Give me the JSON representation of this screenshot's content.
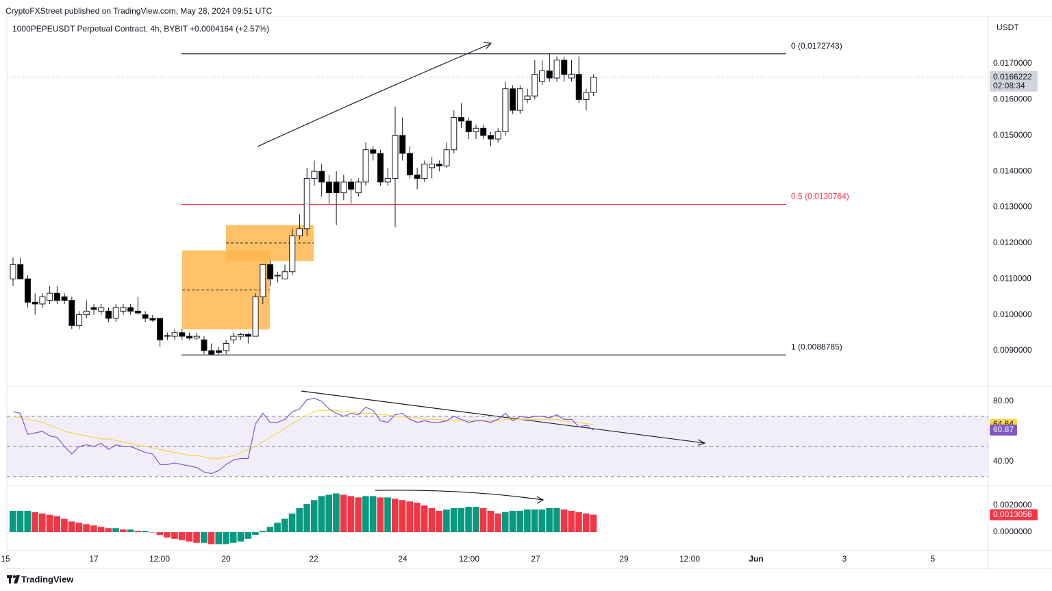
{
  "header": {
    "publisher": "CryptoFXStreet published on TradingView.com, May 28, 2024 09:51 UTC",
    "symbol": "1000PEPEUSDT Perpetual Contract, 4h, BYBIT",
    "change": "+0.0004164 (+2.57%)",
    "currency": "USDT",
    "countdown": "02:08:34",
    "logo": "TradingView"
  },
  "chart_data": [
    {
      "type": "candlestick",
      "up_color": "#ffffff",
      "down_color": "#000000",
      "open": [
        0.011,
        0.0114,
        0.011,
        0.01035,
        0.0103,
        0.0104,
        0.0106,
        0.0105,
        0.0104,
        0.0097,
        0.01,
        0.0102,
        0.0101,
        0.0101,
        0.0099,
        0.0101,
        0.0102,
        0.0101,
        0.01,
        0.0099,
        0.0099,
        0.0094,
        0.0094,
        0.0095,
        0.0094,
        0.00935,
        0.0093,
        0.009,
        0.009,
        0.009,
        0.0093,
        0.0094,
        0.00945,
        0.0094,
        0.0105,
        0.0114,
        0.0111,
        0.011,
        0.0112,
        0.0122,
        0.0124,
        0.0138,
        0.014,
        0.0137,
        0.0137,
        0.0134,
        0.0137,
        0.0134,
        0.0137,
        0.0146,
        0.0145,
        0.0137,
        0.0138,
        0.015,
        0.0145,
        0.0139,
        0.0138,
        0.0141,
        0.0142,
        0.01415,
        0.0146,
        0.0155,
        0.0154,
        0.0151,
        0.0152,
        0.015,
        0.0149,
        0.0151,
        0.0163,
        0.0157,
        0.016,
        0.0161,
        0.0165,
        0.0168,
        0.0166,
        0.0171,
        0.0166,
        0.0167,
        0.016,
        0.0162
      ],
      "high": [
        0.0116,
        0.0116,
        0.0111,
        0.0106,
        0.0106,
        0.0108,
        0.0108,
        0.0106,
        0.0105,
        0.0101,
        0.0104,
        0.0103,
        0.0103,
        0.0102,
        0.0103,
        0.0103,
        0.0103,
        0.0105,
        0.0101,
        0.01,
        0.0099,
        0.0095,
        0.0096,
        0.0096,
        0.0095,
        0.0095,
        0.0094,
        0.0092,
        0.0091,
        0.0093,
        0.0095,
        0.0095,
        0.0095,
        0.0106,
        0.0114,
        0.0115,
        0.0112,
        0.0114,
        0.0124,
        0.0128,
        0.0141,
        0.0143,
        0.0142,
        0.0139,
        0.014,
        0.0139,
        0.0138,
        0.0138,
        0.0148,
        0.0147,
        0.0146,
        0.0141,
        0.0158,
        0.0155,
        0.0147,
        0.0141,
        0.0143,
        0.0144,
        0.0143,
        0.0148,
        0.0157,
        0.0159,
        0.0155,
        0.0153,
        0.0153,
        0.0151,
        0.0152,
        0.0165,
        0.0164,
        0.0164,
        0.0163,
        0.0171,
        0.0171,
        0.01727,
        0.0172,
        0.0172,
        0.0171,
        0.0172,
        0.0163,
        0.0167
      ],
      "low": [
        0.0108,
        0.011,
        0.0102,
        0.01,
        0.0102,
        0.0103,
        0.0103,
        0.0103,
        0.0096,
        0.0096,
        0.0099,
        0.01,
        0.01,
        0.0098,
        0.0098,
        0.01,
        0.01,
        0.01,
        0.0098,
        0.0098,
        0.0091,
        0.0093,
        0.0093,
        0.0093,
        0.0093,
        0.0093,
        0.0089,
        0.00888,
        0.00888,
        0.0089,
        0.0092,
        0.0093,
        0.0092,
        0.0094,
        0.0103,
        0.0108,
        0.0109,
        0.011,
        0.0111,
        0.0121,
        0.0122,
        0.0136,
        0.0133,
        0.0131,
        0.0125,
        0.0132,
        0.0131,
        0.0133,
        0.0136,
        0.0143,
        0.0136,
        0.0136,
        0.01244,
        0.0143,
        0.0138,
        0.0135,
        0.0137,
        0.0138,
        0.014,
        0.0141,
        0.0145,
        0.0152,
        0.0149,
        0.0149,
        0.0149,
        0.0147,
        0.0148,
        0.015,
        0.0156,
        0.0156,
        0.0159,
        0.016,
        0.0164,
        0.0165,
        0.0165,
        0.0165,
        0.0165,
        0.0159,
        0.0157,
        0.0161
      ],
      "close": [
        0.0114,
        0.011,
        0.01035,
        0.0103,
        0.0105,
        0.0106,
        0.0104,
        0.0104,
        0.0097,
        0.01,
        0.0101,
        0.01015,
        0.0102,
        0.0099,
        0.0102,
        0.0102,
        0.0101,
        0.01005,
        0.0099,
        0.00985,
        0.0093,
        0.00942,
        0.0095,
        0.0094,
        0.00935,
        0.0094,
        0.009,
        0.0089,
        0.00895,
        0.0092,
        0.0094,
        0.00945,
        0.0094,
        0.0105,
        0.0114,
        0.011,
        0.0111,
        0.0112,
        0.0122,
        0.0124,
        0.0138,
        0.014,
        0.0137,
        0.0134,
        0.0134,
        0.0137,
        0.0135,
        0.0137,
        0.0146,
        0.0145,
        0.0137,
        0.0138,
        0.015,
        0.0145,
        0.0139,
        0.0138,
        0.0142,
        0.0142,
        0.01415,
        0.0146,
        0.0155,
        0.0154,
        0.0151,
        0.0152,
        0.015,
        0.0149,
        0.0151,
        0.0163,
        0.0157,
        0.0163,
        0.0161,
        0.0167,
        0.0168,
        0.0166,
        0.0171,
        0.0167,
        0.0167,
        0.016,
        0.0162,
        0.0166222
      ],
      "ylim": [
        0.008026,
        0.018203
      ],
      "yticks": [
        {
          "value": 0.009,
          "label": "0.0090000"
        },
        {
          "value": 0.01,
          "label": "0.0100000"
        },
        {
          "value": 0.011,
          "label": "0.0110000"
        },
        {
          "value": 0.012,
          "label": "0.0120000"
        },
        {
          "value": 0.013,
          "label": "0.0130000"
        },
        {
          "value": 0.014,
          "label": "0.0140000"
        },
        {
          "value": 0.015,
          "label": "0.0150000"
        },
        {
          "value": 0.016,
          "label": "0.0160000"
        },
        {
          "value": 0.017,
          "label": "0.0170000"
        }
      ],
      "x_labels": [
        "15",
        "17",
        "12:00",
        "20",
        "22",
        "24",
        "12:00",
        "27",
        "29",
        "12:00",
        "Jun",
        "3",
        "5"
      ],
      "levels": [
        {
          "value": 0.0172743,
          "label": "0 (0.0172743)",
          "color": "#131722"
        },
        {
          "value": 0.0130764,
          "label": "0.5 (0.0130764)",
          "color": "#f23645"
        },
        {
          "value": 0.0088785,
          "label": "1 (0.0088785)",
          "color": "#131722"
        }
      ],
      "zones": [
        {
          "top": 0.0125,
          "bottom": 0.0115,
          "color": "#ffb74d"
        },
        {
          "top": 0.011795,
          "bottom": 0.009592,
          "color": "#ffb74d"
        }
      ],
      "grid": false
    },
    {
      "type": "line",
      "ylim": [
        24.5,
        89.5
      ],
      "yticks": [
        {
          "value": 80,
          "label": "80.00"
        },
        {
          "value": 40,
          "label": "40.00"
        }
      ],
      "levels": [
        70,
        50,
        30
      ],
      "series": [
        {
          "color": "#f7d54a",
          "values": [
            70,
            69,
            68,
            67,
            66,
            64,
            62,
            60,
            59,
            58,
            57,
            56,
            55,
            55,
            54,
            53,
            52,
            51,
            50,
            49,
            48,
            47,
            46,
            45,
            44,
            44,
            43,
            42,
            42,
            43,
            44,
            46,
            48,
            50,
            53,
            56,
            59,
            62,
            65,
            68,
            71,
            73,
            74,
            74,
            74,
            73,
            73,
            72,
            72,
            72,
            71,
            71,
            70,
            70,
            69,
            69,
            68,
            68,
            68,
            67,
            67,
            67,
            67,
            67,
            67,
            67,
            67,
            68,
            68,
            68,
            68,
            68,
            68,
            68,
            68,
            67,
            66,
            66,
            65,
            64.64
          ]
        },
        {
          "color": "#7e57c2",
          "values": [
            73,
            72,
            58,
            59,
            60,
            57,
            56,
            50,
            45,
            50,
            51,
            50,
            52,
            48,
            51,
            50,
            50,
            48,
            46,
            45,
            38,
            38,
            39,
            38,
            37,
            36,
            33,
            32,
            34,
            38,
            41,
            42,
            42,
            65,
            72,
            66,
            66,
            68,
            73,
            75,
            81,
            82,
            80,
            75,
            72,
            70,
            72,
            71,
            76,
            74,
            67,
            66,
            71,
            72,
            68,
            66,
            67,
            66,
            66,
            67,
            70,
            68,
            66,
            67,
            67,
            66,
            68,
            72,
            67,
            70,
            69,
            70,
            70,
            69,
            71,
            68,
            68,
            63,
            64,
            60.87
          ]
        }
      ]
    },
    {
      "type": "bar",
      "up_color": "#089981",
      "down_color": "#f23645",
      "ylim": [
        -0.00133,
        0.00344
      ],
      "yticks": [
        {
          "value": 0.002,
          "label": "0.0020000"
        },
        {
          "value": 0,
          "label": "0.0000000"
        }
      ],
      "values": [
        0.0016,
        0.0016,
        0.0016,
        0.0015,
        0.0014,
        0.0013,
        0.0012,
        0.001,
        0.0008,
        0.0007,
        0.0006,
        0.0005,
        0.0004,
        0.0003,
        0.0003,
        0.0002,
        0.0002,
        0.0001,
        0.0001,
        0,
        -0.0002,
        -0.0004,
        -0.0005,
        -0.0006,
        -0.0007,
        -0.0008,
        -0.0008,
        -0.0009,
        -0.0009,
        -0.0009,
        -0.0008,
        -0.0007,
        -0.0005,
        -0.0002,
        0.0001,
        0.0004,
        0.0007,
        0.001,
        0.0014,
        0.0018,
        0.0021,
        0.0024,
        0.0027,
        0.0028,
        0.0029,
        0.0028,
        0.0027,
        0.0026,
        0.0027,
        0.0027,
        0.0026,
        0.0026,
        0.0025,
        0.0024,
        0.0023,
        0.0022,
        0.002,
        0.0018,
        0.0016,
        0.0017,
        0.0018,
        0.0018,
        0.0019,
        0.0019,
        0.0018,
        0.0016,
        0.0014,
        0.0015,
        0.0016,
        0.0016,
        0.0017,
        0.0017,
        0.0017,
        0.0018,
        0.0018,
        0.0017,
        0.0016,
        0.0015,
        0.0014,
        0.0013056
      ]
    }
  ]
}
